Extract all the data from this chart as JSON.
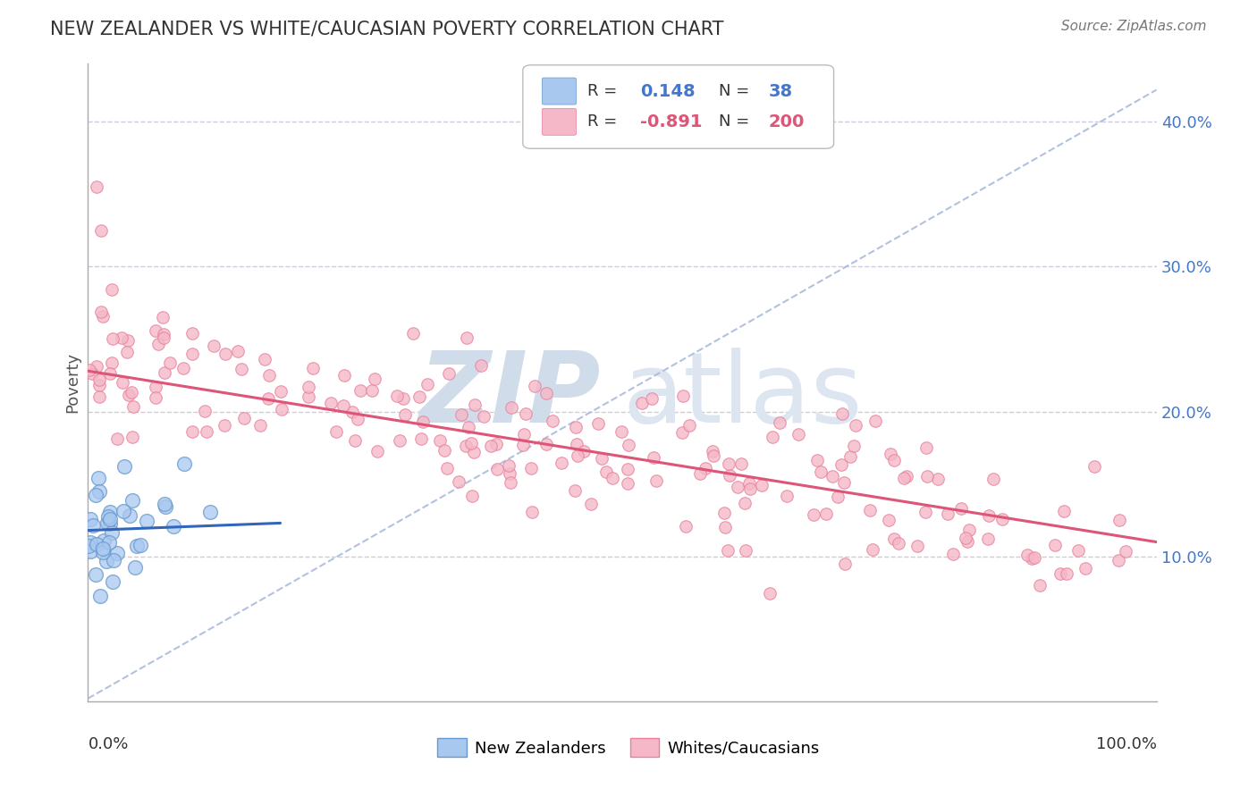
{
  "title": "NEW ZEALANDER VS WHITE/CAUCASIAN POVERTY CORRELATION CHART",
  "source_text": "Source: ZipAtlas.com",
  "ylabel": "Poverty",
  "ytick_labels": [
    "10.0%",
    "20.0%",
    "30.0%",
    "40.0%"
  ],
  "ytick_values": [
    0.1,
    0.2,
    0.3,
    0.4
  ],
  "xlim": [
    0.0,
    1.0
  ],
  "ylim": [
    0.0,
    0.44
  ],
  "legend_v1": "0.148",
  "legend_nv1": "38",
  "legend_v2": "-0.891",
  "legend_nv2": "200",
  "nz_color": "#a8c8f0",
  "nz_edge_color": "#6699cc",
  "white_color": "#f5b8c8",
  "white_edge_color": "#e8809a",
  "nz_line_color": "#3366bb",
  "white_line_color": "#dd5577",
  "diagonal_color": "#aabbdd",
  "background_color": "#ffffff",
  "grid_color": "#ccccdd",
  "title_color": "#333333",
  "source_color": "#777777",
  "nz_slope": 0.028,
  "nz_intercept": 0.118,
  "white_slope": -0.118,
  "white_intercept": 0.228
}
